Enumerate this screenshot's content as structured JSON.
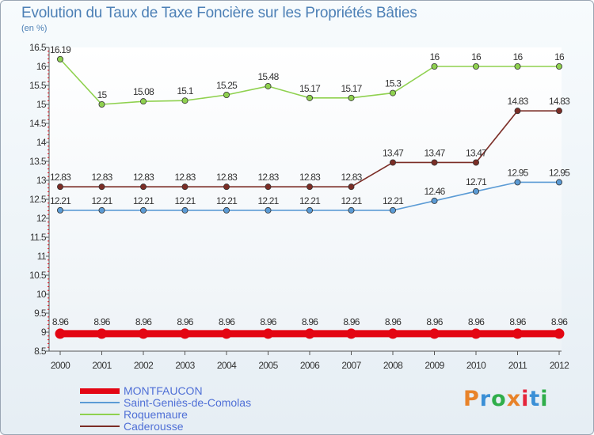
{
  "title": "Evolution du Taux de Taxe Foncière sur les Propriétés Bâties",
  "subtitle": "(en %)",
  "logo": {
    "text": "Proxiti",
    "colors": [
      "#e8832a",
      "#3a8fd6",
      "#2fae4a",
      "#e8832a",
      "#e5243a",
      "#3a8fd6",
      "#2fae4a"
    ]
  },
  "chart_data": {
    "type": "line",
    "title": "Evolution du Taux de Taxe Foncière sur les Propriétés Bâties",
    "ylabel": "(en %)",
    "xlabel": "",
    "ylim": [
      8.5,
      16.5
    ],
    "yticks": [
      "8.5",
      "9",
      "9.5",
      "10",
      "10.5",
      "11",
      "11.5",
      "12",
      "12.5",
      "13",
      "13.5",
      "14",
      "14.5",
      "15",
      "15.5",
      "16",
      "16.5"
    ],
    "grid": false,
    "legend_position": "bottom-left",
    "categories": [
      "2000",
      "2001",
      "2002",
      "2003",
      "2004",
      "2005",
      "2006",
      "2007",
      "2008",
      "2009",
      "2010",
      "2011",
      "2012"
    ],
    "series": [
      {
        "name": "MONTFAUCON",
        "color": "#e30613",
        "values": [
          8.96,
          8.96,
          8.96,
          8.96,
          8.96,
          8.96,
          8.96,
          8.96,
          8.96,
          8.96,
          8.96,
          8.96,
          8.96
        ],
        "labels": [
          "8.96",
          "8.96",
          "8.96",
          "8.96",
          "8.96",
          "8.96",
          "8.96",
          "8.96",
          "8.96",
          "8.96",
          "8.96",
          "8.96",
          "8.96"
        ]
      },
      {
        "name": "Saint-Geniès-de-Comolas",
        "color": "#5b9bd5",
        "values": [
          12.21,
          12.21,
          12.21,
          12.21,
          12.21,
          12.21,
          12.21,
          12.21,
          12.21,
          12.46,
          12.71,
          12.95,
          12.95
        ],
        "labels": [
          "12.21",
          "12.21",
          "12.21",
          "12.21",
          "12.21",
          "12.21",
          "12.21",
          "12.21",
          "12.21",
          "12.46",
          "12.71",
          "12.95",
          "12.95"
        ]
      },
      {
        "name": "Roquemaure",
        "color": "#8fd14f",
        "values": [
          16.19,
          15,
          15.08,
          15.1,
          15.25,
          15.48,
          15.17,
          15.17,
          15.3,
          16,
          16,
          16,
          16
        ],
        "labels": [
          "16.19",
          "15",
          "15.08",
          "15.1",
          "15.25",
          "15.48",
          "15.17",
          "15.17",
          "15.3",
          "16",
          "16",
          "16",
          "16"
        ]
      },
      {
        "name": "Caderousse",
        "color": "#7b2d26",
        "values": [
          12.83,
          12.83,
          12.83,
          12.83,
          12.83,
          12.83,
          12.83,
          12.83,
          13.47,
          13.47,
          13.47,
          14.83,
          14.83
        ],
        "labels": [
          "12.83",
          "12.83",
          "12.83",
          "12.83",
          "12.83",
          "12.83",
          "12.83",
          "12.83",
          "13.47",
          "13.47",
          "13.47",
          "14.83",
          "14.83"
        ]
      }
    ]
  }
}
